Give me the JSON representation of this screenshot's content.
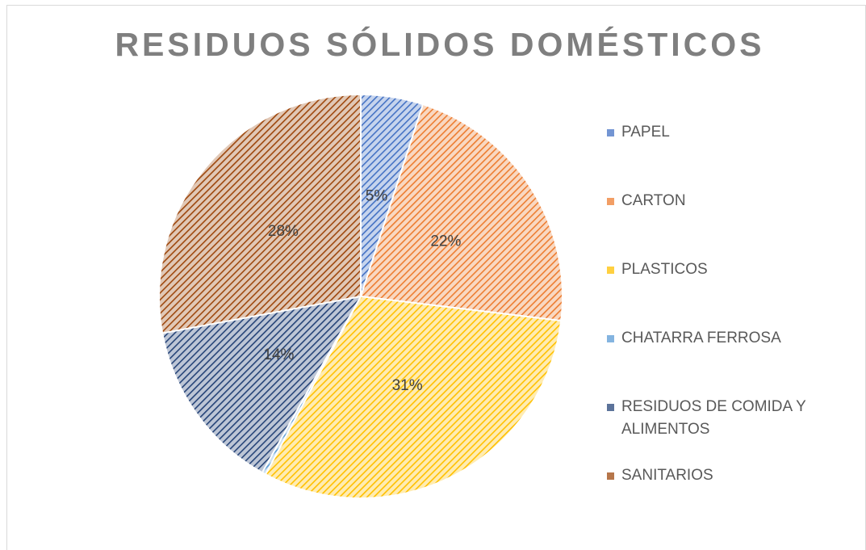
{
  "chart_data": {
    "type": "pie",
    "title": "RESIDUOS SÓLIDOS DOMÉSTICOS",
    "categories": [
      "PAPEL",
      "CARTON",
      "PLASTICOS",
      "CHATARRA FERROSA",
      "RESIDUOS DE COMIDA Y ALIMENTOS",
      "SANITARIOS"
    ],
    "values": [
      5,
      22,
      31,
      0.3,
      14,
      28
    ],
    "value_labels": [
      "5%",
      "22%",
      "31%",
      null,
      "14%",
      "28%"
    ],
    "colors": [
      "#4472c4",
      "#ed7d31",
      "#ffc000",
      "#5b9bd5",
      "#264478",
      "#9e480e"
    ],
    "legend": "right"
  }
}
